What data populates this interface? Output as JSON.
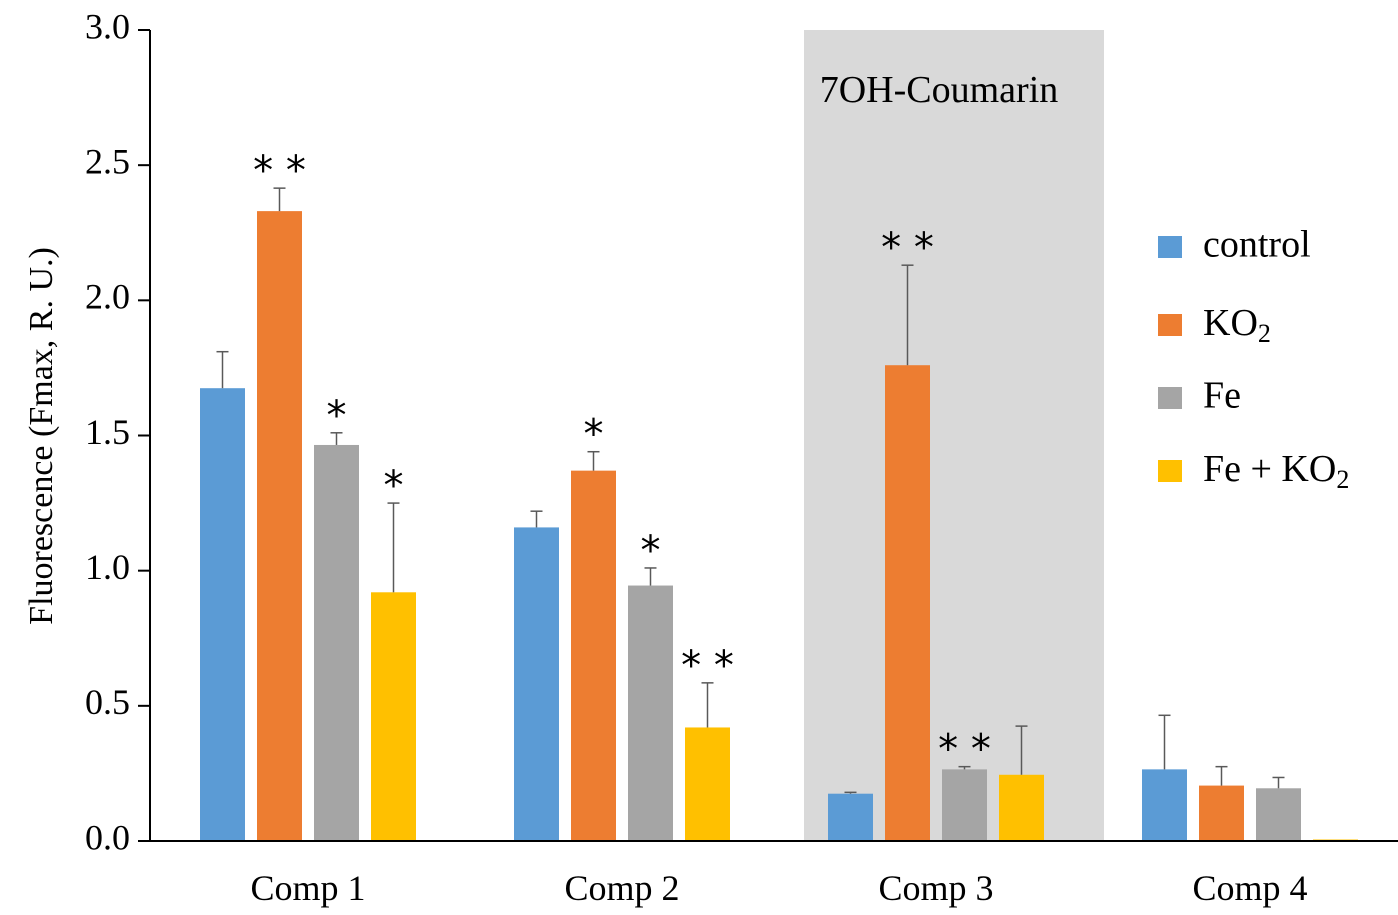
{
  "chart_data": {
    "type": "bar",
    "title": "",
    "xlabel": "",
    "ylabel": "Fluorescence (Fmax, R. U.)",
    "ylim": [
      0,
      3.0
    ],
    "yticks": [
      "0.0",
      "0.5",
      "1.0",
      "1.5",
      "2.0",
      "2.5",
      "3.0"
    ],
    "categories": [
      "Comp 1",
      "Comp 2",
      "Comp 3",
      "Comp 4"
    ],
    "series": [
      {
        "name": "control",
        "color": "#5B9BD5",
        "values": [
          1.675,
          1.16,
          0.175,
          0.265
        ],
        "errors": [
          0.135,
          0.06,
          0.005,
          0.2
        ],
        "sig": [
          "",
          "",
          "",
          ""
        ]
      },
      {
        "name": "KO2",
        "name_main": "KO",
        "name_sub": "2",
        "color": "#ED7D31",
        "values": [
          2.33,
          1.37,
          1.76,
          0.205
        ],
        "errors": [
          0.085,
          0.07,
          0.37,
          0.07
        ],
        "sig": [
          "**",
          "*",
          "**",
          ""
        ]
      },
      {
        "name": "Fe",
        "color": "#A5A5A5",
        "values": [
          1.465,
          0.945,
          0.265,
          0.195
        ],
        "errors": [
          0.045,
          0.065,
          0.01,
          0.04
        ],
        "sig": [
          "*",
          "*",
          "**",
          ""
        ]
      },
      {
        "name": "Fe + KO2",
        "name_main": "Fe + KO",
        "name_sub": "2",
        "color": "#FFC000",
        "values": [
          0.92,
          0.42,
          0.245,
          0.005
        ],
        "errors": [
          0.33,
          0.165,
          0.18,
          0.0
        ],
        "sig": [
          "*",
          "**",
          "",
          ""
        ]
      }
    ],
    "highlight": {
      "category": "Comp 3",
      "label": "7OH-Coumarin",
      "color": "#D9D9D9"
    },
    "legend": "right",
    "grid": false
  }
}
